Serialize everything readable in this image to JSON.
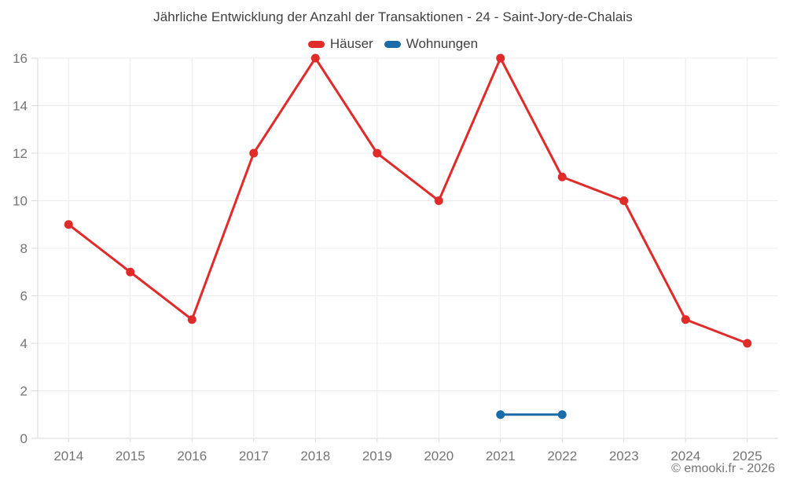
{
  "header": {
    "title": "Jährliche Entwicklung der Anzahl der Transaktionen - 24 - Saint-Jory-de-Chalais"
  },
  "legend": {
    "items": [
      {
        "label": "Häuser",
        "color": "#e02b2b"
      },
      {
        "label": "Wohnungen",
        "color": "#1a6ca8"
      }
    ]
  },
  "footer": {
    "copyright": "© emooki.fr - 2026"
  },
  "colors": {
    "series_red": "#e02b2b",
    "series_blue": "#1a6ca8",
    "gridline": "#ececec",
    "axis_line": "#d9d9d9",
    "tick_label": "#757575",
    "title_text": "#404040"
  },
  "chart_data": {
    "type": "line",
    "title": "Jährliche Entwicklung der Anzahl der Transaktionen - 24 - Saint-Jory-de-Chalais",
    "categories": [
      "2014",
      "2015",
      "2016",
      "2017",
      "2018",
      "2019",
      "2020",
      "2021",
      "2022",
      "2023",
      "2024",
      "2025"
    ],
    "series": [
      {
        "name": "Häuser",
        "color": "#e02b2b",
        "values": [
          9,
          7,
          5,
          12,
          16,
          12,
          10,
          16,
          11,
          10,
          5,
          4
        ]
      },
      {
        "name": "Wohnungen",
        "color": "#1a6ca8",
        "values": [
          null,
          null,
          null,
          null,
          null,
          null,
          null,
          1,
          1,
          null,
          null,
          null
        ]
      }
    ],
    "xlabel": "",
    "ylabel": "",
    "ylim": [
      0,
      16
    ],
    "ytick_step": 2,
    "grid": true,
    "legend_position": "top"
  }
}
